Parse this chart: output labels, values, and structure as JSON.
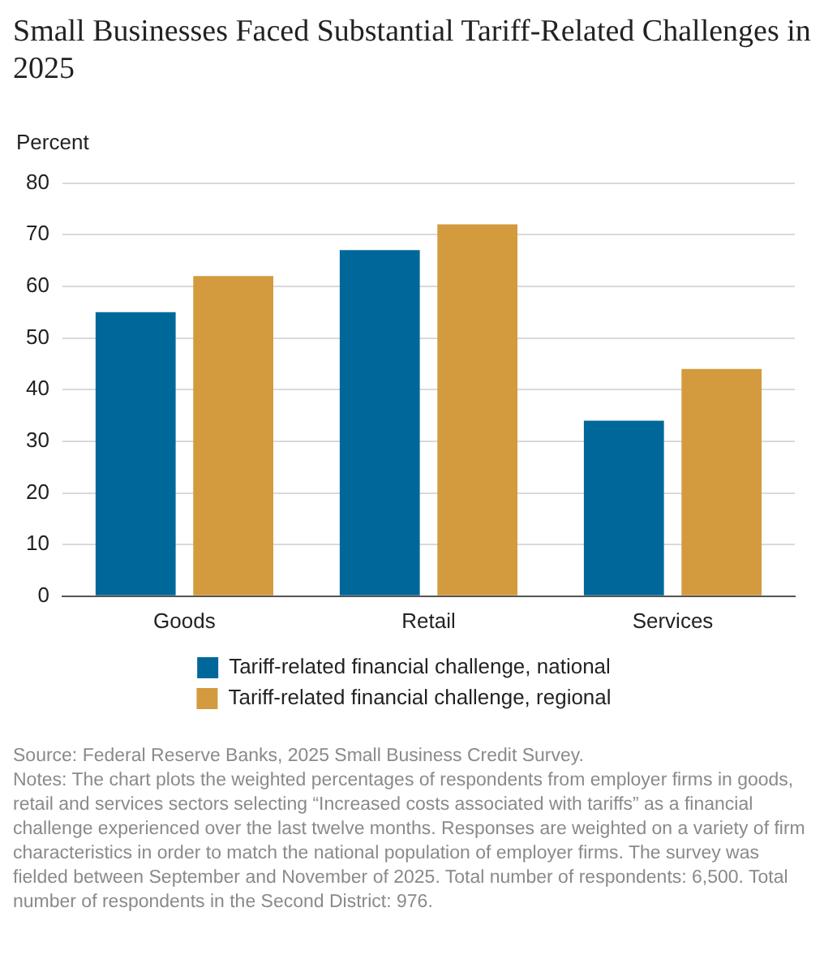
{
  "chart_data": {
    "type": "bar",
    "title": "Small Businesses Faced Substantial Tariff-Related Challenges in 2025",
    "ylabel": "Percent",
    "categories": [
      "Goods",
      "Retail",
      "Services"
    ],
    "series": [
      {
        "name": "Tariff-related financial challenge, national",
        "color": "#00679a",
        "values": [
          55,
          67,
          34
        ]
      },
      {
        "name": "Tariff-related financial challenge, regional",
        "color": "#d39b3e",
        "values": [
          62,
          72,
          44
        ]
      }
    ],
    "ylim": [
      0,
      80
    ],
    "yticks": [
      0,
      10,
      20,
      30,
      40,
      50,
      60,
      70,
      80
    ],
    "grid": "y",
    "legend": "bottom",
    "annotations": [
      "Source: Federal Reserve Banks, 2025 Small Business Credit Survey.",
      "Notes: The chart plots the weighted percentages of respondents from employer firms in goods, retail and services sectors selecting “Increased costs associated with tariffs” as a financial challenge experienced over the last twelve months. Responses are weighted on a variety of firm characteristics in order to match the national population of employer firms. The survey was fielded between September and November of 2025. Total number of respondents: 6,500. Total number of respondents in the Second District: 976."
    ]
  }
}
